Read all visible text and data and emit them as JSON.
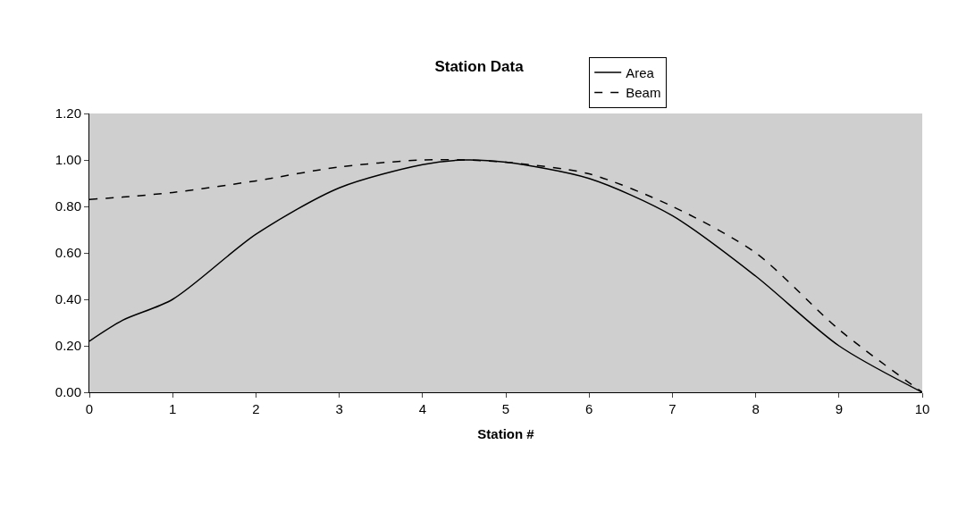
{
  "chart_data": {
    "type": "line",
    "title": "Station Data",
    "xlabel": "Station #",
    "xlim": [
      0,
      10
    ],
    "xticks": [
      0,
      1,
      2,
      3,
      4,
      5,
      6,
      7,
      8,
      9,
      10
    ],
    "ylim": [
      0,
      1.2
    ],
    "yticks": [
      {
        "value": 0,
        "label": "0.00"
      },
      {
        "value": 0.2,
        "label": "0.20"
      },
      {
        "value": 0.4,
        "label": "0.40"
      },
      {
        "value": 0.6,
        "label": "0.60"
      },
      {
        "value": 0.8,
        "label": "0.80"
      },
      {
        "value": 1,
        "label": "1.00"
      },
      {
        "value": 1.2,
        "label": "1.20"
      }
    ],
    "x": [
      0,
      0.4,
      1,
      2,
      3,
      4,
      4.5,
      5,
      6,
      7,
      8,
      9,
      10
    ],
    "series": [
      {
        "name": "Area",
        "color": "#000000",
        "line_style": "solid",
        "values": [
          0.22,
          0.31,
          0.4,
          0.68,
          0.88,
          0.98,
          1.0,
          0.99,
          0.92,
          0.76,
          0.5,
          0.2,
          0.0
        ]
      },
      {
        "name": "Beam",
        "color": "#000000",
        "line_style": "dashed",
        "values": [
          0.83,
          0.84,
          0.86,
          0.91,
          0.97,
          1.0,
          1.0,
          0.99,
          0.94,
          0.8,
          0.6,
          0.27,
          0.0
        ]
      }
    ],
    "grid": false,
    "legend": "top right",
    "marker": "none"
  }
}
